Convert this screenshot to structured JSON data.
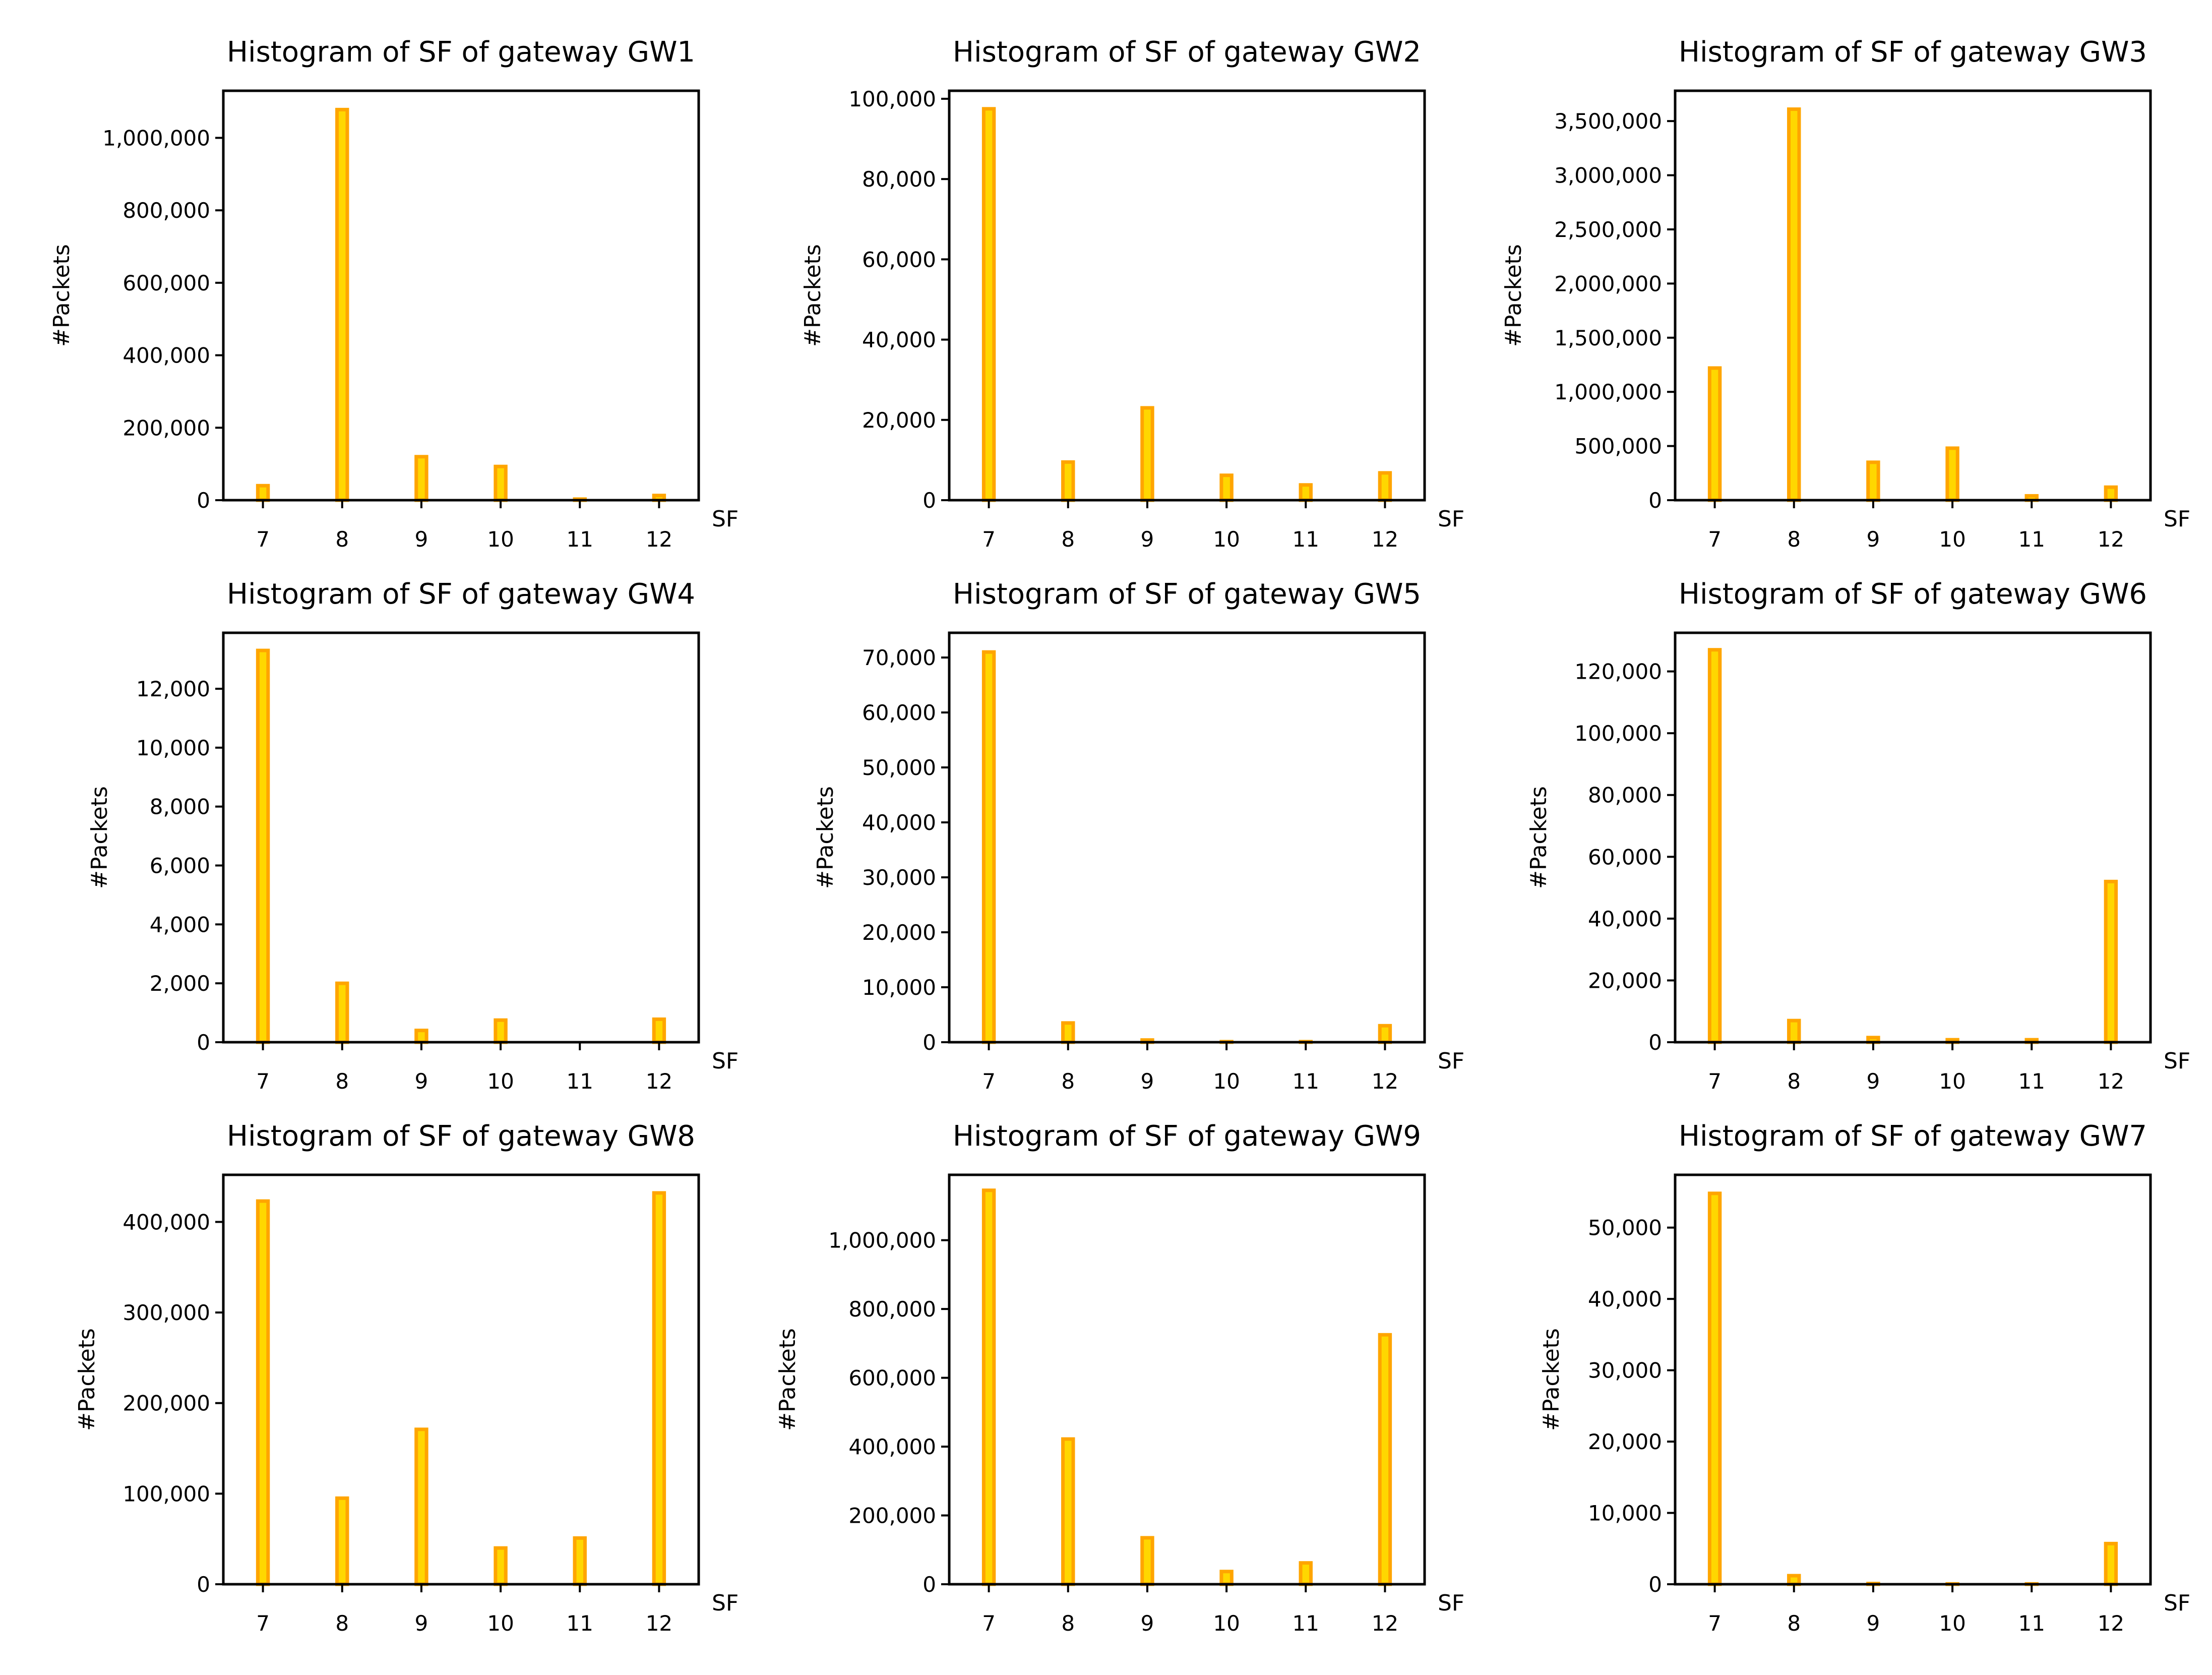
{
  "style": {
    "bar_fill": "#ffd700",
    "bar_edge": "#ffa500",
    "axis": "#000000"
  },
  "chart_data": [
    {
      "type": "bar",
      "title": "Histogram of SF of gateway GW1",
      "xlabel": "SF",
      "ylabel": "#Packets",
      "categories": [
        7,
        8,
        9,
        10,
        11,
        12
      ],
      "values": [
        40000,
        1078000,
        120000,
        93000,
        3000,
        13000
      ],
      "ylim": [
        0,
        1130000
      ],
      "yticks": [
        0,
        200000,
        400000,
        600000,
        800000,
        1000000
      ],
      "ytick_labels": [
        "0",
        "200,000",
        "400,000",
        "600,000",
        "800,000",
        "1,000,000"
      ],
      "xtick_labels": [
        "7",
        "8",
        "9",
        "10",
        "11",
        "12"
      ]
    },
    {
      "type": "bar",
      "title": "Histogram of SF of gateway GW2",
      "xlabel": "SF",
      "ylabel": "#Packets",
      "categories": [
        7,
        8,
        9,
        10,
        11,
        12
      ],
      "values": [
        97500,
        9500,
        23000,
        6200,
        3800,
        6800
      ],
      "ylim": [
        0,
        102000
      ],
      "yticks": [
        0,
        20000,
        40000,
        60000,
        80000,
        100000
      ],
      "ytick_labels": [
        "0",
        "20,000",
        "40,000",
        "60,000",
        "80,000",
        "100,000"
      ],
      "xtick_labels": [
        "7",
        "8",
        "9",
        "10",
        "11",
        "12"
      ]
    },
    {
      "type": "bar",
      "title": "Histogram of SF of gateway GW3",
      "xlabel": "SF",
      "ylabel": "#Packets",
      "categories": [
        7,
        8,
        9,
        10,
        11,
        12
      ],
      "values": [
        1220000,
        3610000,
        350000,
        480000,
        40000,
        120000
      ],
      "ylim": [
        0,
        3780000
      ],
      "yticks": [
        0,
        500000,
        1000000,
        1500000,
        2000000,
        2500000,
        3000000,
        3500000
      ],
      "ytick_labels": [
        "0",
        "500,000",
        "1,000,000",
        "1,500,000",
        "2,000,000",
        "2,500,000",
        "3,000,000",
        "3,500,000"
      ],
      "xtick_labels": [
        "7",
        "8",
        "9",
        "10",
        "11",
        "12"
      ]
    },
    {
      "type": "bar",
      "title": "Histogram of SF of gateway GW4",
      "xlabel": "SF",
      "ylabel": "#Packets",
      "categories": [
        7,
        8,
        9,
        10,
        11,
        12
      ],
      "values": [
        13300,
        2000,
        400,
        750,
        0,
        780
      ],
      "ylim": [
        0,
        13900
      ],
      "yticks": [
        0,
        2000,
        4000,
        6000,
        8000,
        10000,
        12000
      ],
      "ytick_labels": [
        "0",
        "2,000",
        "4,000",
        "6,000",
        "8,000",
        "10,000",
        "12,000"
      ],
      "xtick_labels": [
        "7",
        "8",
        "9",
        "10",
        "11",
        "12"
      ]
    },
    {
      "type": "bar",
      "title": "Histogram of SF of gateway GW5",
      "xlabel": "SF",
      "ylabel": "#Packets",
      "categories": [
        7,
        8,
        9,
        10,
        11,
        12
      ],
      "values": [
        71000,
        3500,
        400,
        100,
        100,
        3000
      ],
      "ylim": [
        0,
        74500
      ],
      "yticks": [
        0,
        10000,
        20000,
        30000,
        40000,
        50000,
        60000,
        70000
      ],
      "ytick_labels": [
        "0",
        "10,000",
        "20,000",
        "30,000",
        "40,000",
        "50,000",
        "60,000",
        "70,000"
      ],
      "xtick_labels": [
        "7",
        "8",
        "9",
        "10",
        "11",
        "12"
      ]
    },
    {
      "type": "bar",
      "title": "Histogram of SF of gateway GW6",
      "xlabel": "SF",
      "ylabel": "#Packets",
      "categories": [
        7,
        8,
        9,
        10,
        11,
        12
      ],
      "values": [
        127000,
        7000,
        1500,
        800,
        800,
        52000
      ],
      "ylim": [
        0,
        132500
      ],
      "yticks": [
        0,
        20000,
        40000,
        60000,
        80000,
        100000,
        120000
      ],
      "ytick_labels": [
        "0",
        "20,000",
        "40,000",
        "60,000",
        "80,000",
        "100,000",
        "120,000"
      ],
      "xtick_labels": [
        "7",
        "8",
        "9",
        "10",
        "11",
        "12"
      ]
    },
    {
      "type": "bar",
      "title": "Histogram of SF of gateway GW8",
      "xlabel": "SF",
      "ylabel": "#Packets",
      "categories": [
        7,
        8,
        9,
        10,
        11,
        12
      ],
      "values": [
        423000,
        95000,
        171000,
        40000,
        51000,
        432000
      ],
      "ylim": [
        0,
        452000
      ],
      "yticks": [
        0,
        100000,
        200000,
        300000,
        400000
      ],
      "ytick_labels": [
        "0",
        "100,000",
        "200,000",
        "300,000",
        "400,000"
      ],
      "xtick_labels": [
        "7",
        "8",
        "9",
        "10",
        "11",
        "12"
      ]
    },
    {
      "type": "bar",
      "title": "Histogram of SF of gateway GW9",
      "xlabel": "SF",
      "ylabel": "#Packets",
      "categories": [
        7,
        8,
        9,
        10,
        11,
        12
      ],
      "values": [
        1145000,
        422000,
        135000,
        37000,
        62000,
        725000
      ],
      "ylim": [
        0,
        1190000
      ],
      "yticks": [
        0,
        200000,
        400000,
        600000,
        800000,
        1000000
      ],
      "ytick_labels": [
        "0",
        "200,000",
        "400,000",
        "600,000",
        "800,000",
        "1,000,000"
      ],
      "xtick_labels": [
        "7",
        "8",
        "9",
        "10",
        "11",
        "12"
      ]
    },
    {
      "type": "bar",
      "title": "Histogram of SF of gateway GW7",
      "xlabel": "SF",
      "ylabel": "#Packets",
      "categories": [
        7,
        8,
        9,
        10,
        11,
        12
      ],
      "values": [
        54800,
        1200,
        100,
        50,
        50,
        5700
      ],
      "ylim": [
        0,
        57400
      ],
      "yticks": [
        0,
        10000,
        20000,
        30000,
        40000,
        50000
      ],
      "ytick_labels": [
        "0",
        "10,000",
        "20,000",
        "30,000",
        "40,000",
        "50,000"
      ],
      "xtick_labels": [
        "7",
        "8",
        "9",
        "10",
        "11",
        "12"
      ]
    }
  ]
}
